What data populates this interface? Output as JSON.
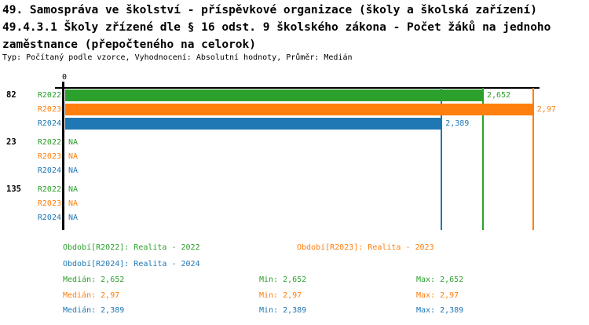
{
  "header": {
    "title_lines": [
      "49. Samospráva ve školství - příspěvkové organizace (školy a školská zařízení)",
      "49.4.3.1 Školy zřízené dle § 16 odst. 9 školského zákona - Počet žáků na jednoho",
      "zaměstnance (přepočteného na celorok)"
    ],
    "subtitle": "Typ: Počítaný podle vzorce, Vyhodnocení: Absolutní hodnoty, Průměr: Medián"
  },
  "colors": {
    "r2022": "#2ca02c",
    "r2023": "#ff7f0e",
    "r2024": "#1f77b4",
    "axis": "#000000",
    "background": "#ffffff"
  },
  "chart_data": {
    "type": "bar",
    "orientation": "horizontal",
    "grid": false,
    "x_axis": {
      "origin_tick_label": "0",
      "xlim": [
        0,
        3.0
      ]
    },
    "series": [
      {
        "name": "R2022",
        "color": "#2ca02c",
        "period": "Realita - 2022"
      },
      {
        "name": "R2023",
        "color": "#ff7f0e",
        "period": "Realita - 2023"
      },
      {
        "name": "R2024",
        "color": "#1f77b4",
        "period": "Realita - 2024"
      }
    ],
    "categories": [
      "82",
      "23",
      "135"
    ],
    "groups": [
      {
        "category": "82",
        "values": [
          2.652,
          2.97,
          2.389
        ],
        "value_labels": [
          "2,652",
          "2,97",
          "2,389"
        ]
      },
      {
        "category": "23",
        "values": [
          null,
          null,
          null
        ],
        "value_labels": [
          "NA",
          "NA",
          "NA"
        ]
      },
      {
        "category": "135",
        "values": [
          null,
          null,
          null
        ],
        "value_labels": [
          "NA",
          "NA",
          "NA"
        ]
      }
    ],
    "median_lines": [
      {
        "series": "R2022",
        "value": 2.652,
        "color": "#2ca02c"
      },
      {
        "series": "R2023",
        "value": 2.97,
        "color": "#ff7f0e"
      },
      {
        "series": "R2024",
        "value": 2.389,
        "color": "#1f77b4"
      }
    ]
  },
  "legend": {
    "periods": [
      {
        "label": "Období[R2022]: Realita - 2022",
        "color": "#2ca02c"
      },
      {
        "label": "Období[R2023]: Realita - 2023",
        "color": "#ff7f0e"
      },
      {
        "label": "Období[R2024]: Realita - 2024",
        "color": "#1f77b4"
      }
    ],
    "stats": [
      {
        "median": "Medián: 2,652",
        "min": "Min: 2,652",
        "max": "Max: 2,652",
        "color": "#2ca02c"
      },
      {
        "median": "Medián: 2,97",
        "min": "Min: 2,97",
        "max": "Max: 2,97",
        "color": "#ff7f0e"
      },
      {
        "median": "Medián: 2,389",
        "min": "Min: 2,389",
        "max": "Max: 2,389",
        "color": "#1f77b4"
      }
    ]
  }
}
